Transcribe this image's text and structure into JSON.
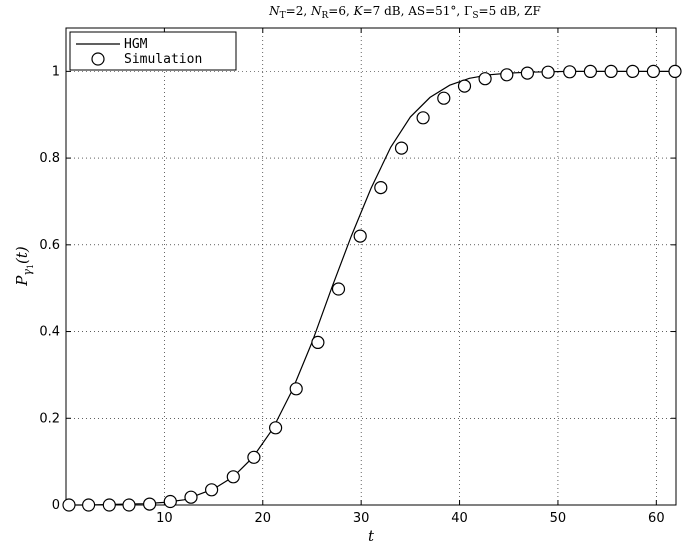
{
  "chart_data": {
    "type": "line",
    "title": "N_T=2, N_R=6, K=7 dB, AS=51°, Γ_S=5 dB, ZF",
    "title_parts": {
      "nt_sym": "N",
      "nt_sub": "T",
      "nt_val": "=2, ",
      "nr_sym": "N",
      "nr_sub": "R",
      "nr_val": "=6, ",
      "k_sym": "K",
      "k_val": "=7 dB, AS=51°, ",
      "gs_sym": "Γ",
      "gs_sub": "S",
      "gs_val": "=5 dB, ZF"
    },
    "xlabel": "t",
    "ylabel_parts": {
      "sym": "P",
      "sub": "γ",
      "subsub": "1",
      "arg": "(t)"
    },
    "xlim": [
      0,
      62
    ],
    "ylim": [
      0,
      1.1
    ],
    "xticks": [
      10,
      20,
      30,
      40,
      50,
      60
    ],
    "yticks": [
      0,
      0.2,
      0.4,
      0.6,
      0.8,
      1
    ],
    "ytick_labels": [
      "0",
      "0.2",
      "0.4",
      "0.6",
      "0.8",
      "1"
    ],
    "grid": true,
    "legend_position": "top-left",
    "series": [
      {
        "name": "HGM",
        "style": "solid-line",
        "color": "#000000",
        "x": [
          0,
          2,
          4,
          6,
          8,
          10,
          12,
          13,
          15,
          17,
          19,
          21,
          23,
          25,
          27,
          29,
          31,
          33,
          35,
          37,
          39,
          41,
          43,
          45,
          47,
          49,
          51,
          53,
          55,
          57,
          59,
          62
        ],
        "y": [
          0,
          0,
          0.001,
          0.002,
          0.003,
          0.006,
          0.012,
          0.02,
          0.037,
          0.065,
          0.11,
          0.175,
          0.265,
          0.375,
          0.5,
          0.62,
          0.73,
          0.825,
          0.895,
          0.94,
          0.968,
          0.984,
          0.992,
          0.996,
          0.998,
          0.999,
          1,
          1,
          1,
          1,
          1,
          1
        ]
      },
      {
        "name": "Simulation",
        "style": "open-circle-markers",
        "color": "#000000",
        "x": [
          0.3,
          2.3,
          4.4,
          6.4,
          8.5,
          10.6,
          12.7,
          14.8,
          17.0,
          19.1,
          21.3,
          23.4,
          25.6,
          27.7,
          29.9,
          32.0,
          34.1,
          36.3,
          38.4,
          40.5,
          42.6,
          44.8,
          46.9,
          49.0,
          51.2,
          53.3,
          55.4,
          57.6,
          59.7,
          61.9
        ],
        "y": [
          0,
          0,
          0,
          0,
          0.002,
          0.008,
          0.018,
          0.035,
          0.065,
          0.11,
          0.178,
          0.268,
          0.375,
          0.498,
          0.62,
          0.732,
          0.823,
          0.893,
          0.938,
          0.966,
          0.983,
          0.992,
          0.996,
          0.998,
          0.999,
          1,
          1,
          1,
          1,
          1
        ]
      }
    ]
  }
}
